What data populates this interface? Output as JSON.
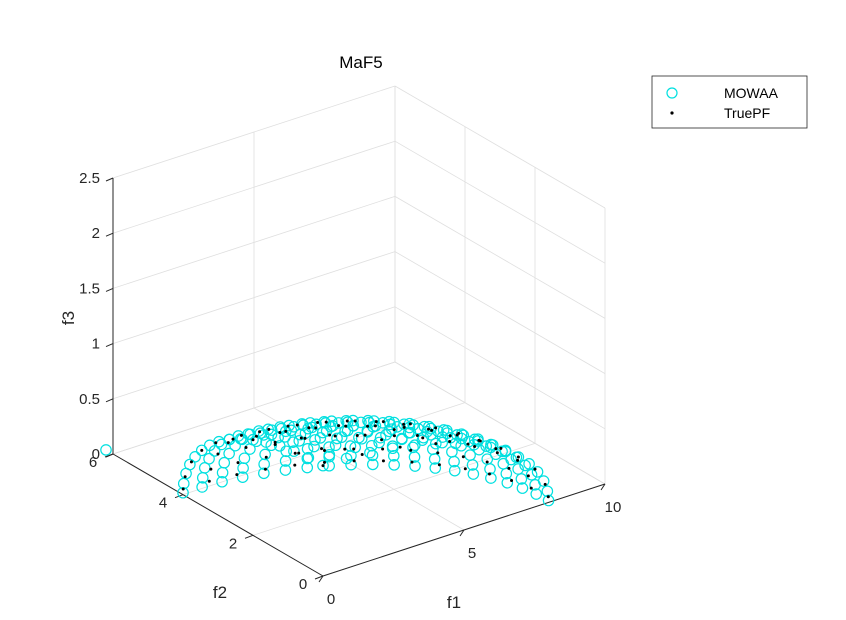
{
  "chart_data": {
    "type": "scatter3d",
    "title": "MaF5",
    "xlabel": "f1",
    "ylabel": "f2",
    "zlabel": "f3",
    "xlim": [
      0,
      10
    ],
    "ylim": [
      0,
      6
    ],
    "zlim": [
      0,
      2.5
    ],
    "xticks": [
      "0",
      "5",
      "10"
    ],
    "yticks": [
      "0",
      "2",
      "4",
      "6"
    ],
    "zticks": [
      "0",
      "0.5",
      "1",
      "1.5",
      "2",
      "2.5"
    ],
    "grid": true,
    "legend_position": "top-right",
    "legend": [
      "MOWAA",
      "TruePF"
    ],
    "series_colors": {
      "MOWAA": "#00e0e0",
      "TruePF": "#000000"
    },
    "series": [
      {
        "name": "MOWAA",
        "marker": "circle-open",
        "front_scale": 8,
        "f2_scale": 4,
        "f3_scale": 1,
        "rings": [
          {
            "elevation": 90,
            "count": 1
          },
          {
            "elevation": 84,
            "count": 3
          },
          {
            "elevation": 78,
            "count": 5
          },
          {
            "elevation": 72,
            "count": 7
          },
          {
            "elevation": 66,
            "count": 9
          },
          {
            "elevation": 60,
            "count": 11
          },
          {
            "elevation": 54,
            "count": 12
          },
          {
            "elevation": 48,
            "count": 14
          },
          {
            "elevation": 42,
            "count": 15
          },
          {
            "elevation": 36,
            "count": 16
          },
          {
            "elevation": 30,
            "count": 17
          },
          {
            "elevation": 24,
            "count": 18
          },
          {
            "elevation": 18,
            "count": 19
          },
          {
            "elevation": 12,
            "count": 20
          },
          {
            "elevation": 6,
            "count": 20
          },
          {
            "elevation": 1,
            "count": 20
          }
        ],
        "extra_points": [
          {
            "f1": 0,
            "f2": 6.2,
            "f3": 0
          }
        ]
      },
      {
        "name": "TruePF",
        "marker": "dot",
        "front_scale": 8,
        "f2_scale": 4,
        "f3_scale": 1,
        "rings": [
          {
            "elevation": 90,
            "count": 1
          },
          {
            "elevation": 80,
            "count": 4
          },
          {
            "elevation": 70,
            "count": 6
          },
          {
            "elevation": 60,
            "count": 8
          },
          {
            "elevation": 50,
            "count": 10
          },
          {
            "elevation": 40,
            "count": 12
          },
          {
            "elevation": 30,
            "count": 13
          },
          {
            "elevation": 20,
            "count": 14
          },
          {
            "elevation": 10,
            "count": 15
          },
          {
            "elevation": 3,
            "count": 15
          }
        ]
      }
    ]
  }
}
